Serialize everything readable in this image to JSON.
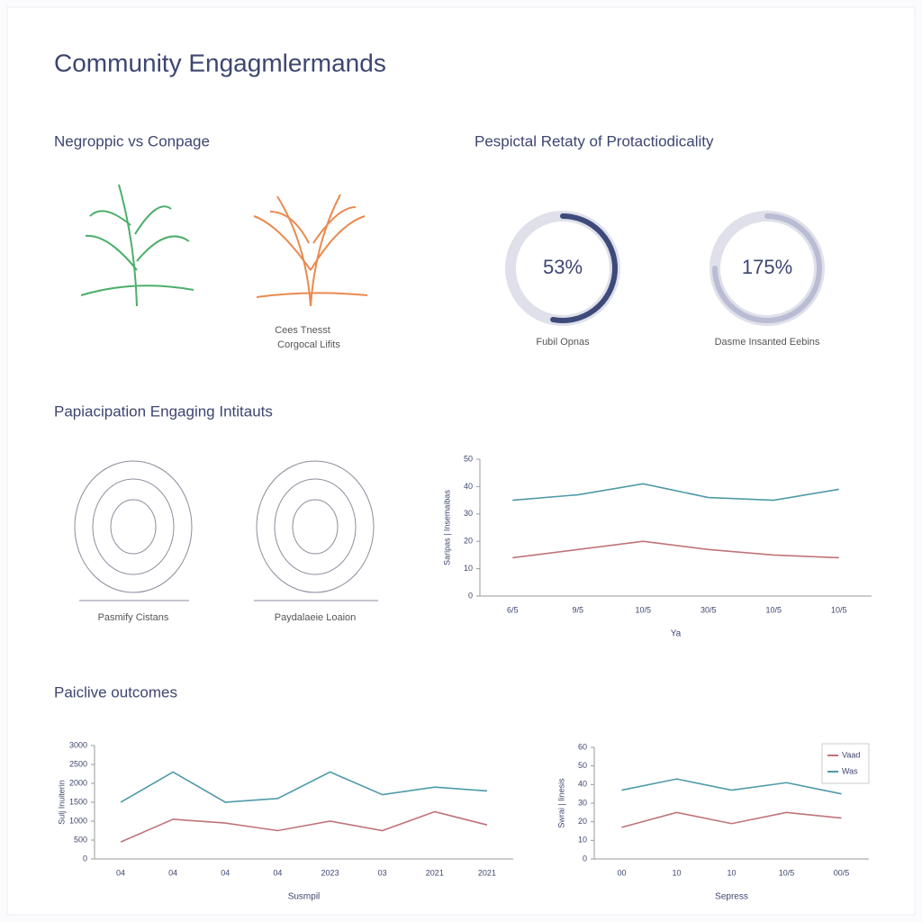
{
  "title": "Community Engagmlermands",
  "headings": [
    "Negroppic vs Conpage",
    "Pespictal Retaty of Protactiodicality",
    "Papiacipation Engaging Intitauts",
    "Paiclive outcomes"
  ],
  "captions": [
    "Cees Tnesst",
    "Corgocal Lifits",
    "Pasmify Cistans",
    "Paydalaeie Loaion"
  ],
  "chart_data": [
    {
      "type": "gauge",
      "values": [
        53
      ],
      "value_labels": [
        "53%"
      ],
      "label": "Fubil Opnas",
      "color": "#3d4a7a"
    },
    {
      "type": "gauge",
      "values": [
        175
      ],
      "value_labels": [
        "175%"
      ],
      "label": "Dasme Insanted Eebins",
      "color": "#b9bcd3"
    },
    {
      "type": "line",
      "categories": [
        "6/5",
        "9/5",
        "10/5",
        "30/5",
        "10/5",
        "10/5"
      ],
      "series": [
        {
          "color": "#4e9aa8",
          "values": [
            35,
            37,
            41,
            36,
            35,
            39
          ]
        },
        {
          "color": "#c0737a",
          "values": [
            14,
            17,
            20,
            17,
            15,
            14
          ]
        }
      ],
      "ylim": [
        0,
        50
      ],
      "yticks": [
        0,
        10,
        20,
        30,
        40,
        50
      ],
      "xlabel": "Ya",
      "ylabel": "Saripas | Insemaibas"
    },
    {
      "type": "line",
      "categories": [
        "04",
        "04",
        "04",
        "04",
        "2023",
        "03",
        "2021",
        "2021"
      ],
      "series": [
        {
          "color": "#4e9aa8",
          "values": [
            1500,
            2300,
            1500,
            1600,
            2300,
            1700,
            1900,
            1800
          ]
        },
        {
          "color": "#c0737a",
          "values": [
            450,
            1050,
            950,
            750,
            1000,
            750,
            1250,
            900
          ]
        }
      ],
      "ylim": [
        0,
        3000
      ],
      "yticks": [
        0,
        500,
        1000,
        1500,
        2000,
        2500,
        3000
      ],
      "xlabel": "Susmpil",
      "ylabel": "Sulj Inuiterin"
    },
    {
      "type": "line",
      "categories": [
        "00",
        "10",
        "10",
        "10/5",
        "00/5"
      ],
      "series": [
        {
          "name": "Was",
          "color": "#4e9aa8",
          "values": [
            37,
            43,
            37,
            41,
            35
          ]
        },
        {
          "name": "Vaad",
          "color": "#c0737a",
          "values": [
            17,
            25,
            19,
            25,
            22
          ]
        }
      ],
      "ylim": [
        0,
        60
      ],
      "yticks": [
        0,
        10,
        20,
        30,
        40,
        50,
        60
      ],
      "xlabel": "Sepress",
      "ylabel": "Swrai | Iinesis",
      "legend": "upper right"
    }
  ]
}
